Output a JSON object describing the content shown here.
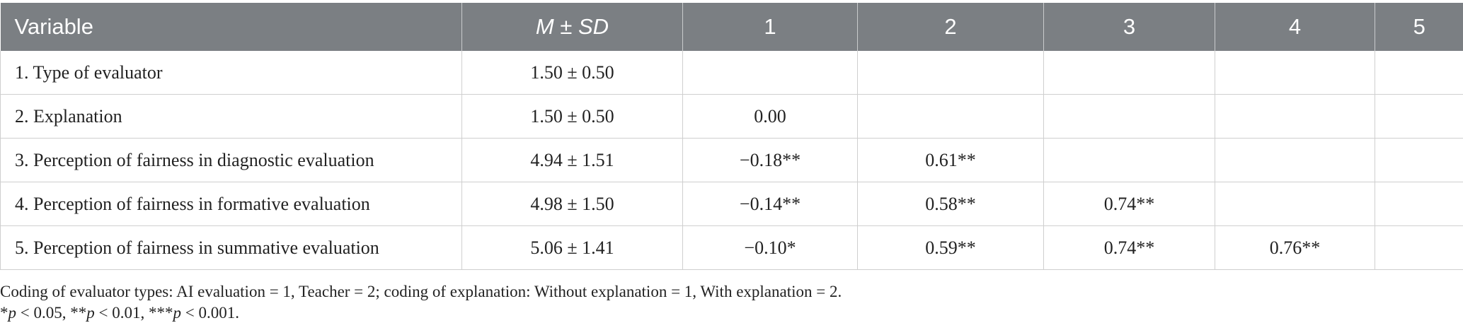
{
  "table": {
    "headers": {
      "variable": "Variable",
      "msd": "M ± SD",
      "c1": "1",
      "c2": "2",
      "c3": "3",
      "c4": "4",
      "c5": "5"
    },
    "rows": [
      {
        "variable": "1. Type of evaluator",
        "msd": "1.50 ± 0.50",
        "c1": "",
        "c2": "",
        "c3": "",
        "c4": "",
        "c5": ""
      },
      {
        "variable": "2. Explanation",
        "msd": "1.50 ± 0.50",
        "c1": "0.00",
        "c2": "",
        "c3": "",
        "c4": "",
        "c5": ""
      },
      {
        "variable": "3. Perception of fairness in diagnostic evaluation",
        "msd": "4.94 ± 1.51",
        "c1": "−0.18**",
        "c2": "0.61**",
        "c3": "",
        "c4": "",
        "c5": ""
      },
      {
        "variable": "4. Perception of fairness in formative evaluation",
        "msd": "4.98 ± 1.50",
        "c1": "−0.14**",
        "c2": "0.58**",
        "c3": "0.74**",
        "c4": "",
        "c5": ""
      },
      {
        "variable": "5. Perception of fairness in summative evaluation",
        "msd": "5.06 ± 1.41",
        "c1": "−0.10*",
        "c2": "0.59**",
        "c3": "0.74**",
        "c4": "0.76**",
        "c5": ""
      }
    ]
  },
  "notes": {
    "coding": "Coding of evaluator types: AI evaluation = 1, Teacher = 2; coding of explanation: Without explanation = 1, With explanation = 2.",
    "sig": {
      "a_prefix": "*",
      "a_p": "p",
      "a_val": " < 0.05, ",
      "b_prefix": "**",
      "b_p": "p",
      "b_val": " < 0.01, ",
      "c_prefix": "***",
      "c_p": "p",
      "c_val": " < 0.001."
    }
  }
}
